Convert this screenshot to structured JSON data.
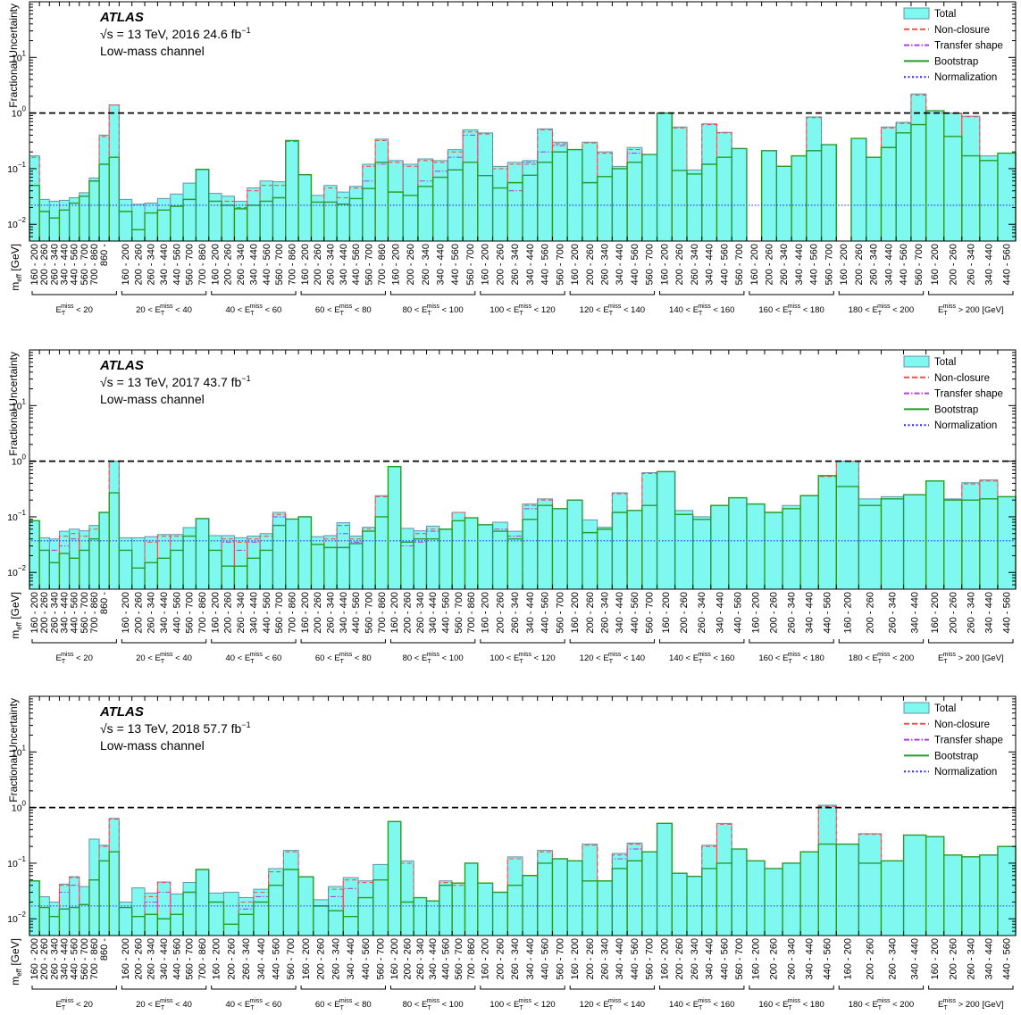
{
  "figure": {
    "experiment": "ATLAS",
    "sqrt_s_symbol": "√s",
    "energy_label": "= 13 TeV",
    "channel": "Low-mass channel",
    "y_label": "Fractional Uncertainty",
    "x_label": "m_eff [GeV]",
    "x_label_main": "m",
    "x_label_sub": "eff",
    "x_label_unit": "[GeV]",
    "range_labels": [
      "160 - 200",
      "200 - 260",
      "260 - 340",
      "340 - 440",
      "440 - 560",
      "560 - 700",
      "700 - 860",
      "860 -"
    ],
    "group_labels": [
      "E_T^miss < 20",
      "20 < E_T^miss < 40",
      "40 < E_T^miss < 60",
      "60 < E_T^miss < 80",
      "80 < E_T^miss < 100",
      "100 < E_T^miss < 120",
      "120 < E_T^miss < 140",
      "140 < E_T^miss < 160",
      "160 < E_T^miss < 180",
      "180 < E_T^miss < 200",
      "E_T^miss > 200 [GeV]"
    ],
    "legend": [
      {
        "label": "Total",
        "color": "#7ff8f0",
        "style": "fill"
      },
      {
        "label": "Non-closure",
        "color": "#f0504a",
        "style": "dashed"
      },
      {
        "label": "Transfer shape",
        "color": "#b040e0",
        "style": "dashdot"
      },
      {
        "label": "Bootstrap",
        "color": "#2a9a2a",
        "style": "solid"
      },
      {
        "label": "Normalization",
        "color": "#2a2aff",
        "style": "dotted"
      }
    ],
    "colors": {
      "total_fill": "#7ff8f0",
      "total_line": "#6a8fa8",
      "reference_line": "#000000"
    }
  },
  "chart_data": [
    {
      "type": "bar",
      "year_label": "2016 24.6 fb",
      "lumi_exponent": "−1",
      "y_scale": "log",
      "ylim": [
        0.005,
        100
      ],
      "y_ticks": [
        {
          "value": 0.01,
          "base": "10",
          "exp": "−2"
        },
        {
          "value": 0.1,
          "base": "10",
          "exp": "−1"
        },
        {
          "value": 1,
          "base": "10",
          "exp": "0"
        },
        {
          "value": 10,
          "base": "10",
          "exp": "1"
        }
      ],
      "reference_line": 1,
      "normalization": 0.022,
      "series": [
        {
          "name": "Total",
          "values": [
            0.17,
            0.028,
            0.026,
            0.027,
            0.03,
            0.037,
            0.068,
            0.4,
            1.4,
            0.028,
            0.023,
            0.024,
            0.029,
            0.035,
            0.055,
            0.097,
            0.036,
            0.032,
            0.026,
            0.045,
            0.06,
            0.058,
            0.32,
            0.078,
            0.033,
            0.05,
            0.038,
            0.048,
            0.12,
            0.34,
            0.14,
            0.12,
            0.15,
            0.14,
            0.22,
            0.5,
            0.44,
            0.11,
            0.13,
            0.14,
            0.52,
            0.3,
            0.22,
            0.3,
            0.2,
            0.11,
            0.24,
            0.18,
            1.0,
            0.56,
            0.095,
            0.64,
            0.45,
            0.23,
            null,
            0.21,
            0.11,
            0.17,
            0.85,
            0.27,
            null,
            0.35,
            0.16,
            0.56,
            0.68,
            2.2,
            1.1,
            1.0,
            0.88,
            0.17,
            0.19
          ]
        },
        {
          "name": "Bootstrap",
          "values": [
            0.05,
            0.017,
            0.013,
            0.018,
            0.024,
            0.032,
            0.06,
            0.12,
            0.16,
            0.017,
            0.008,
            0.016,
            0.018,
            0.021,
            0.028,
            0.097,
            0.026,
            0.022,
            0.019,
            0.022,
            0.026,
            0.03,
            0.32,
            0.078,
            0.025,
            0.025,
            0.023,
            0.029,
            0.044,
            0.13,
            0.038,
            0.033,
            0.048,
            0.07,
            0.095,
            0.13,
            0.075,
            0.045,
            0.056,
            0.076,
            0.13,
            0.2,
            0.22,
            0.056,
            0.072,
            0.1,
            0.13,
            0.18,
            1.0,
            0.093,
            0.08,
            0.12,
            0.16,
            0.23,
            null,
            0.21,
            0.11,
            0.17,
            0.21,
            0.27,
            null,
            0.35,
            0.16,
            0.24,
            0.44,
            0.62,
            1.1,
            0.38,
            0.17,
            0.14,
            0.19
          ]
        },
        {
          "name": "Non-closure",
          "values": [
            0.16,
            null,
            null,
            null,
            null,
            null,
            0.06,
            0.38,
            1.4,
            null,
            null,
            null,
            null,
            null,
            null,
            null,
            null,
            0.026,
            0.02,
            0.04,
            0.05,
            0.05,
            0.31,
            null,
            null,
            0.045,
            0.03,
            0.045,
            0.11,
            0.32,
            0.13,
            0.11,
            0.14,
            0.13,
            0.2,
            0.46,
            0.42,
            0.1,
            0.12,
            0.12,
            0.5,
            0.28,
            null,
            0.29,
            0.19,
            0.1,
            0.22,
            null,
            null,
            0.54,
            null,
            0.62,
            0.44,
            null,
            null,
            null,
            null,
            null,
            0.83,
            null,
            null,
            null,
            null,
            0.54,
            0.65,
            2.1,
            1.0,
            0.98,
            0.86,
            null,
            null
          ]
        },
        {
          "name": "Transfer shape",
          "values": [
            null,
            null,
            null,
            null,
            null,
            null,
            null,
            null,
            null,
            null,
            null,
            null,
            null,
            null,
            null,
            null,
            null,
            null,
            null,
            null,
            null,
            null,
            null,
            null,
            null,
            null,
            null,
            null,
            0.06,
            0.12,
            null,
            null,
            0.06,
            0.09,
            0.16,
            0.4,
            null,
            null,
            0.04,
            0.13,
            0.2,
            0.26,
            null,
            null,
            null,
            null,
            0.19,
            null,
            null,
            null,
            null,
            null,
            null,
            null,
            null,
            null,
            null,
            null,
            null,
            null,
            null,
            null,
            null,
            null,
            null,
            null,
            null,
            null,
            null,
            null,
            null
          ]
        }
      ]
    },
    {
      "type": "bar",
      "year_label": "2017 43.7 fb",
      "lumi_exponent": "−1",
      "y_scale": "log",
      "ylim": [
        0.005,
        100
      ],
      "y_ticks": [
        {
          "value": 0.01,
          "base": "10",
          "exp": "−2"
        },
        {
          "value": 0.1,
          "base": "10",
          "exp": "−1"
        },
        {
          "value": 1,
          "base": "10",
          "exp": "0"
        },
        {
          "value": 10,
          "base": "10",
          "exp": "1"
        }
      ],
      "reference_line": 1,
      "normalization": 0.037,
      "series": [
        {
          "name": "Total",
          "values": [
            0.085,
            0.042,
            0.04,
            0.055,
            0.06,
            0.056,
            0.07,
            0.12,
            1.0,
            0.042,
            0.042,
            0.044,
            0.048,
            0.048,
            0.064,
            0.093,
            0.046,
            0.046,
            0.042,
            0.045,
            0.05,
            0.12,
            0.091,
            0.1,
            0.044,
            0.046,
            0.078,
            0.045,
            0.065,
            0.24,
            0.8,
            0.062,
            0.056,
            0.068,
            0.06,
            0.12,
            0.096,
            0.072,
            0.08,
            0.055,
            0.17,
            0.21,
            0.14,
            0.2,
            0.088,
            0.065,
            0.27,
            0.13,
            0.62,
            0.65,
            0.13,
            0.1,
            0.16,
            0.22,
            0.17,
            0.12,
            0.16,
            0.24,
            0.55,
            1.0,
            0.21,
            0.23,
            0.25,
            0.44,
            0.21,
            0.41,
            0.46,
            0.23
          ]
        },
        {
          "name": "Bootstrap",
          "values": [
            0.085,
            0.025,
            0.015,
            0.022,
            0.018,
            0.025,
            0.04,
            0.12,
            0.27,
            0.025,
            0.012,
            0.015,
            0.018,
            0.025,
            0.045,
            0.093,
            0.025,
            0.013,
            0.013,
            0.018,
            0.025,
            0.07,
            0.091,
            0.1,
            0.032,
            0.028,
            0.028,
            0.033,
            0.055,
            0.1,
            0.8,
            0.035,
            0.04,
            0.04,
            0.06,
            0.085,
            0.096,
            0.072,
            0.055,
            0.04,
            0.09,
            0.16,
            0.14,
            0.2,
            0.052,
            0.06,
            0.12,
            0.13,
            0.16,
            0.65,
            0.11,
            0.09,
            0.16,
            0.22,
            0.17,
            0.12,
            0.14,
            0.24,
            0.55,
            0.35,
            0.16,
            0.21,
            0.25,
            0.44,
            0.2,
            0.2,
            0.21,
            0.23
          ]
        },
        {
          "name": "Non-closure",
          "values": [
            null,
            null,
            null,
            0.045,
            0.05,
            0.045,
            0.06,
            null,
            1.0,
            null,
            null,
            0.035,
            0.045,
            0.045,
            null,
            null,
            null,
            0.04,
            0.035,
            0.04,
            0.045,
            0.11,
            null,
            null,
            null,
            0.04,
            0.07,
            0.04,
            0.06,
            0.23,
            null,
            null,
            0.05,
            0.06,
            null,
            0.12,
            null,
            null,
            null,
            null,
            0.16,
            0.2,
            null,
            null,
            null,
            null,
            0.26,
            null,
            0.6,
            null,
            null,
            null,
            null,
            null,
            null,
            null,
            null,
            null,
            0.53,
            1.0,
            null,
            null,
            null,
            null,
            null,
            0.39,
            0.44,
            null
          ]
        },
        {
          "name": "Transfer shape",
          "values": [
            null,
            null,
            0.025,
            0.03,
            0.04,
            null,
            null,
            null,
            null,
            null,
            null,
            null,
            null,
            null,
            null,
            null,
            null,
            0.035,
            0.025,
            0.035,
            null,
            0.1,
            null,
            null,
            null,
            null,
            0.05,
            0.035,
            null,
            null,
            null,
            0.03,
            0.035,
            0.055,
            null,
            null,
            null,
            null,
            0.06,
            0.045,
            0.14,
            null,
            null,
            null,
            null,
            null,
            null,
            null,
            null,
            null,
            null,
            null,
            null,
            null,
            null,
            null,
            null,
            null,
            null,
            null,
            null,
            null,
            null,
            null,
            null,
            null,
            null,
            null
          ]
        }
      ]
    },
    {
      "type": "bar",
      "year_label": "2018 57.7 fb",
      "lumi_exponent": "−1",
      "y_scale": "log",
      "ylim": [
        0.005,
        100
      ],
      "y_ticks": [
        {
          "value": 0.01,
          "base": "10",
          "exp": "−2"
        },
        {
          "value": 0.1,
          "base": "10",
          "exp": "−1"
        },
        {
          "value": 1,
          "base": "10",
          "exp": "0"
        },
        {
          "value": 10,
          "base": "10",
          "exp": "1"
        }
      ],
      "reference_line": 1,
      "normalization": 0.017,
      "series": [
        {
          "name": "Total",
          "values": [
            0.048,
            0.025,
            0.02,
            0.042,
            0.057,
            0.038,
            0.27,
            0.21,
            0.64,
            0.02,
            0.036,
            0.029,
            0.046,
            0.028,
            0.045,
            0.077,
            0.029,
            0.03,
            0.024,
            0.034,
            0.08,
            0.17,
            0.057,
            0.022,
            0.038,
            0.055,
            0.048,
            0.095,
            0.56,
            0.11,
            0.024,
            0.021,
            0.048,
            0.044,
            0.1,
            0.044,
            0.03,
            0.13,
            0.06,
            0.17,
            0.12,
            0.11,
            0.22,
            0.048,
            0.15,
            0.23,
            0.16,
            0.52,
            0.066,
            0.058,
            0.21,
            0.52,
            0.18,
            0.11,
            0.08,
            0.1,
            0.16,
            1.1,
            0.22,
            0.34,
            0.11,
            0.32,
            0.3,
            0.14,
            0.13,
            0.14,
            0.2
          ]
        },
        {
          "name": "Bootstrap",
          "values": [
            0.048,
            0.016,
            0.011,
            0.015,
            0.016,
            0.018,
            0.05,
            0.11,
            0.16,
            0.016,
            0.011,
            0.012,
            0.01,
            0.012,
            0.03,
            0.077,
            0.02,
            0.008,
            0.012,
            0.02,
            0.04,
            0.077,
            0.057,
            0.017,
            0.014,
            0.011,
            0.024,
            0.05,
            0.56,
            0.02,
            0.024,
            0.021,
            0.04,
            0.044,
            0.1,
            0.044,
            0.03,
            0.04,
            0.06,
            0.1,
            0.12,
            0.11,
            0.048,
            0.048,
            0.08,
            0.11,
            0.16,
            0.52,
            0.066,
            0.058,
            0.08,
            0.1,
            0.18,
            0.11,
            0.08,
            0.1,
            0.16,
            0.22,
            0.22,
            0.1,
            0.11,
            0.32,
            0.3,
            0.14,
            0.13,
            0.14,
            0.2
          ]
        },
        {
          "name": "Non-closure",
          "values": [
            null,
            null,
            null,
            0.04,
            0.055,
            null,
            null,
            0.2,
            0.62,
            null,
            null,
            0.025,
            0.045,
            null,
            null,
            null,
            null,
            null,
            0.02,
            0.03,
            0.07,
            0.16,
            null,
            null,
            0.034,
            0.05,
            0.045,
            null,
            null,
            0.1,
            null,
            null,
            0.045,
            0.04,
            null,
            null,
            null,
            0.12,
            null,
            0.16,
            null,
            null,
            0.21,
            null,
            0.14,
            0.22,
            null,
            null,
            null,
            null,
            0.2,
            0.5,
            null,
            null,
            null,
            null,
            null,
            1.05,
            null,
            0.33,
            null,
            null,
            null,
            null,
            null,
            null,
            null
          ]
        },
        {
          "name": "Transfer shape",
          "values": [
            null,
            null,
            null,
            0.03,
            0.04,
            null,
            null,
            null,
            null,
            null,
            null,
            0.02,
            0.03,
            null,
            null,
            null,
            null,
            null,
            0.015,
            0.025,
            null,
            null,
            null,
            null,
            0.025,
            0.035,
            null,
            null,
            null,
            null,
            null,
            null,
            null,
            null,
            null,
            null,
            null,
            null,
            null,
            null,
            null,
            null,
            null,
            null,
            0.12,
            0.18,
            null,
            null,
            null,
            null,
            null,
            null,
            null,
            null,
            null,
            null,
            null,
            null,
            null,
            null,
            null,
            null,
            null,
            null,
            null,
            null,
            null
          ]
        }
      ]
    }
  ]
}
